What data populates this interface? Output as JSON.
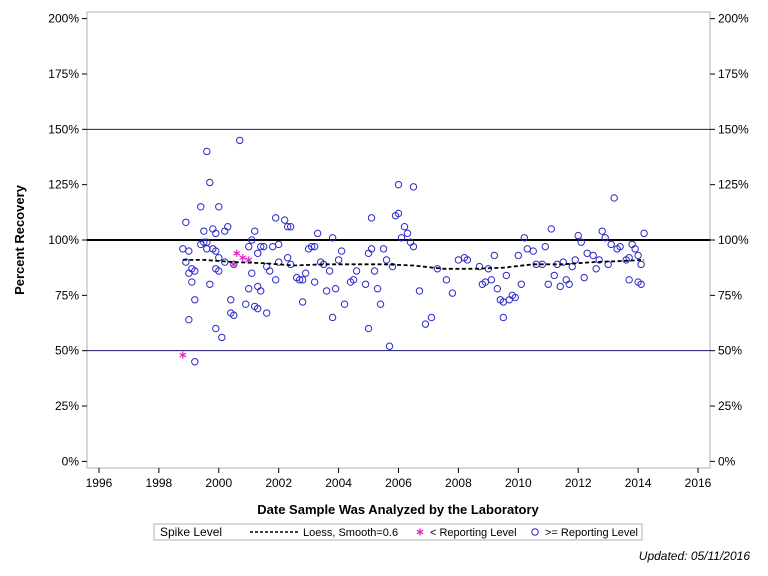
{
  "footnote": "Updated: 05/11/2016",
  "chart_data": {
    "type": "scatter",
    "xlabel": "Date Sample Was Analyzed by the Laboratory",
    "ylabel": "Percent Recovery",
    "xlim": [
      1995.6,
      2016.4
    ],
    "ylim": [
      -3,
      203
    ],
    "x_ticks": [
      1996,
      1998,
      2000,
      2002,
      2004,
      2006,
      2008,
      2010,
      2012,
      2014,
      2016
    ],
    "y_ticks": [
      0,
      25,
      50,
      75,
      100,
      125,
      150,
      175,
      200
    ],
    "y_tick_labels": [
      "0%",
      "25%",
      "50%",
      "75%",
      "100%",
      "125%",
      "150%",
      "175%",
      "200%"
    ],
    "reference_lines": [
      {
        "y": 150,
        "color": "#1a1a6e",
        "width": 1
      },
      {
        "y": 100,
        "color": "#000000",
        "width": 2
      },
      {
        "y": 50,
        "color": "#1a1a6e",
        "width": 1
      }
    ],
    "legend": {
      "title": "Spike Level",
      "placement": "bottom",
      "entries": [
        "Loess, Smooth=0.6",
        "< Reporting Level",
        ">= Reporting Level"
      ]
    },
    "colors": {
      "circle": "#2a2ac8",
      "asterisk": "#e020c0",
      "loess": "#000000"
    },
    "series": [
      {
        "name": "Loess, Smooth=0.6",
        "style": "dashed-line",
        "points": [
          [
            1998.8,
            91
          ],
          [
            1999.5,
            91
          ],
          [
            2000.5,
            90
          ],
          [
            2001.5,
            89.5
          ],
          [
            2002.5,
            88.5
          ],
          [
            2003.5,
            89
          ],
          [
            2004.5,
            89
          ],
          [
            2005.5,
            89
          ],
          [
            2006.5,
            88.5
          ],
          [
            2007.5,
            87
          ],
          [
            2008.5,
            87
          ],
          [
            2009.5,
            87.5
          ],
          [
            2010.5,
            89
          ],
          [
            2011.5,
            89
          ],
          [
            2012.5,
            90
          ],
          [
            2013.5,
            90.5
          ],
          [
            2014.2,
            91
          ]
        ]
      },
      {
        "name": "< Reporting Level",
        "marker": "asterisk",
        "points": [
          [
            1998.8,
            48
          ],
          [
            2000.6,
            94
          ],
          [
            2000.5,
            89
          ],
          [
            2000.8,
            92
          ],
          [
            2001.0,
            91
          ]
        ]
      },
      {
        "name": ">= Reporting Level",
        "marker": "open-circle",
        "points": [
          [
            1998.9,
            108
          ],
          [
            1998.8,
            96
          ],
          [
            1999.0,
            95
          ],
          [
            1998.9,
            90
          ],
          [
            1999.0,
            85
          ],
          [
            1999.1,
            87
          ],
          [
            1999.2,
            86
          ],
          [
            1999.1,
            81
          ],
          [
            1999.2,
            73
          ],
          [
            1999.0,
            64
          ],
          [
            1999.2,
            45
          ],
          [
            1999.4,
            115
          ],
          [
            1999.5,
            104
          ],
          [
            1999.4,
            98
          ],
          [
            1999.5,
            99
          ],
          [
            1999.6,
            99
          ],
          [
            1999.6,
            96
          ],
          [
            1999.8,
            96
          ],
          [
            1999.6,
            140
          ],
          [
            1999.7,
            126
          ],
          [
            1999.8,
            105
          ],
          [
            1999.9,
            103
          ],
          [
            2000.0,
            115
          ],
          [
            1999.9,
            95
          ],
          [
            2000.0,
            92
          ],
          [
            1999.7,
            80
          ],
          [
            1999.9,
            87
          ],
          [
            2000.0,
            86
          ],
          [
            1999.9,
            60
          ],
          [
            2000.1,
            56
          ],
          [
            2000.2,
            104
          ],
          [
            2000.3,
            106
          ],
          [
            2000.2,
            90
          ],
          [
            2000.4,
            73
          ],
          [
            2000.5,
            66
          ],
          [
            2000.4,
            67
          ],
          [
            2000.5,
            89
          ],
          [
            2000.7,
            145
          ],
          [
            2000.9,
            71
          ],
          [
            2001.0,
            97
          ],
          [
            2001.1,
            100
          ],
          [
            2001.2,
            104
          ],
          [
            2001.1,
            85
          ],
          [
            2001.3,
            94
          ],
          [
            2001.3,
            79
          ],
          [
            2001.4,
            97
          ],
          [
            2001.5,
            97
          ],
          [
            2001.4,
            77
          ],
          [
            2001.0,
            78
          ],
          [
            2001.2,
            70
          ],
          [
            2001.3,
            69
          ],
          [
            2001.6,
            88
          ],
          [
            2001.7,
            86
          ],
          [
            2001.6,
            67
          ],
          [
            2001.8,
            97
          ],
          [
            2001.9,
            110
          ],
          [
            2002.0,
            98
          ],
          [
            2002.0,
            90
          ],
          [
            2001.9,
            82
          ],
          [
            2002.2,
            109
          ],
          [
            2002.3,
            106
          ],
          [
            2002.4,
            106
          ],
          [
            2002.3,
            92
          ],
          [
            2002.4,
            89
          ],
          [
            2002.6,
            83
          ],
          [
            2002.7,
            82
          ],
          [
            2002.8,
            82
          ],
          [
            2002.9,
            85
          ],
          [
            2002.8,
            72
          ],
          [
            2003.0,
            96
          ],
          [
            2003.1,
            97
          ],
          [
            2003.2,
            97
          ],
          [
            2003.2,
            81
          ],
          [
            2003.3,
            103
          ],
          [
            2003.4,
            90
          ],
          [
            2003.5,
            89
          ],
          [
            2003.6,
            77
          ],
          [
            2003.7,
            86
          ],
          [
            2003.8,
            101
          ],
          [
            2003.9,
            78
          ],
          [
            2003.8,
            65
          ],
          [
            2004.0,
            91
          ],
          [
            2004.1,
            95
          ],
          [
            2004.2,
            71
          ],
          [
            2004.4,
            81
          ],
          [
            2004.5,
            82
          ],
          [
            2004.6,
            86
          ],
          [
            2004.9,
            80
          ],
          [
            2005.0,
            94
          ],
          [
            2005.1,
            96
          ],
          [
            2005.1,
            110
          ],
          [
            2005.2,
            86
          ],
          [
            2005.0,
            60
          ],
          [
            2005.3,
            78
          ],
          [
            2005.4,
            71
          ],
          [
            2005.5,
            96
          ],
          [
            2005.6,
            91
          ],
          [
            2005.7,
            52
          ],
          [
            2005.8,
            88
          ],
          [
            2005.9,
            111
          ],
          [
            2006.0,
            125
          ],
          [
            2006.0,
            112
          ],
          [
            2006.1,
            101
          ],
          [
            2006.2,
            106
          ],
          [
            2006.3,
            103
          ],
          [
            2006.4,
            99
          ],
          [
            2006.5,
            124
          ],
          [
            2006.5,
            97
          ],
          [
            2006.7,
            77
          ],
          [
            2006.9,
            62
          ],
          [
            2007.1,
            65
          ],
          [
            2007.3,
            87
          ],
          [
            2007.6,
            82
          ],
          [
            2007.8,
            76
          ],
          [
            2008.0,
            91
          ],
          [
            2008.2,
            92
          ],
          [
            2008.3,
            91
          ],
          [
            2008.7,
            88
          ],
          [
            2008.8,
            80
          ],
          [
            2008.9,
            81
          ],
          [
            2009.0,
            87
          ],
          [
            2009.1,
            82
          ],
          [
            2009.2,
            93
          ],
          [
            2009.3,
            78
          ],
          [
            2009.4,
            73
          ],
          [
            2009.5,
            65
          ],
          [
            2009.5,
            72
          ],
          [
            2009.6,
            84
          ],
          [
            2009.7,
            73
          ],
          [
            2009.8,
            75
          ],
          [
            2009.9,
            74
          ],
          [
            2010.0,
            93
          ],
          [
            2010.1,
            80
          ],
          [
            2010.2,
            101
          ],
          [
            2010.3,
            96
          ],
          [
            2010.5,
            95
          ],
          [
            2010.6,
            89
          ],
          [
            2010.8,
            89
          ],
          [
            2010.9,
            97
          ],
          [
            2011.0,
            80
          ],
          [
            2011.1,
            105
          ],
          [
            2011.2,
            84
          ],
          [
            2011.3,
            89
          ],
          [
            2011.4,
            79
          ],
          [
            2011.5,
            90
          ],
          [
            2011.6,
            82
          ],
          [
            2011.7,
            80
          ],
          [
            2011.8,
            88
          ],
          [
            2011.9,
            91
          ],
          [
            2012.0,
            102
          ],
          [
            2012.1,
            99
          ],
          [
            2012.2,
            83
          ],
          [
            2012.3,
            94
          ],
          [
            2012.5,
            93
          ],
          [
            2012.6,
            87
          ],
          [
            2012.7,
            91
          ],
          [
            2012.8,
            104
          ],
          [
            2012.9,
            101
          ],
          [
            2013.0,
            89
          ],
          [
            2013.1,
            98
          ],
          [
            2013.2,
            119
          ],
          [
            2013.3,
            96
          ],
          [
            2013.4,
            97
          ],
          [
            2013.6,
            91
          ],
          [
            2013.7,
            92
          ],
          [
            2013.7,
            82
          ],
          [
            2013.8,
            98
          ],
          [
            2013.9,
            96
          ],
          [
            2014.0,
            93
          ],
          [
            2014.0,
            81
          ],
          [
            2014.1,
            89
          ],
          [
            2014.2,
            103
          ],
          [
            2014.1,
            80
          ]
        ]
      }
    ]
  }
}
